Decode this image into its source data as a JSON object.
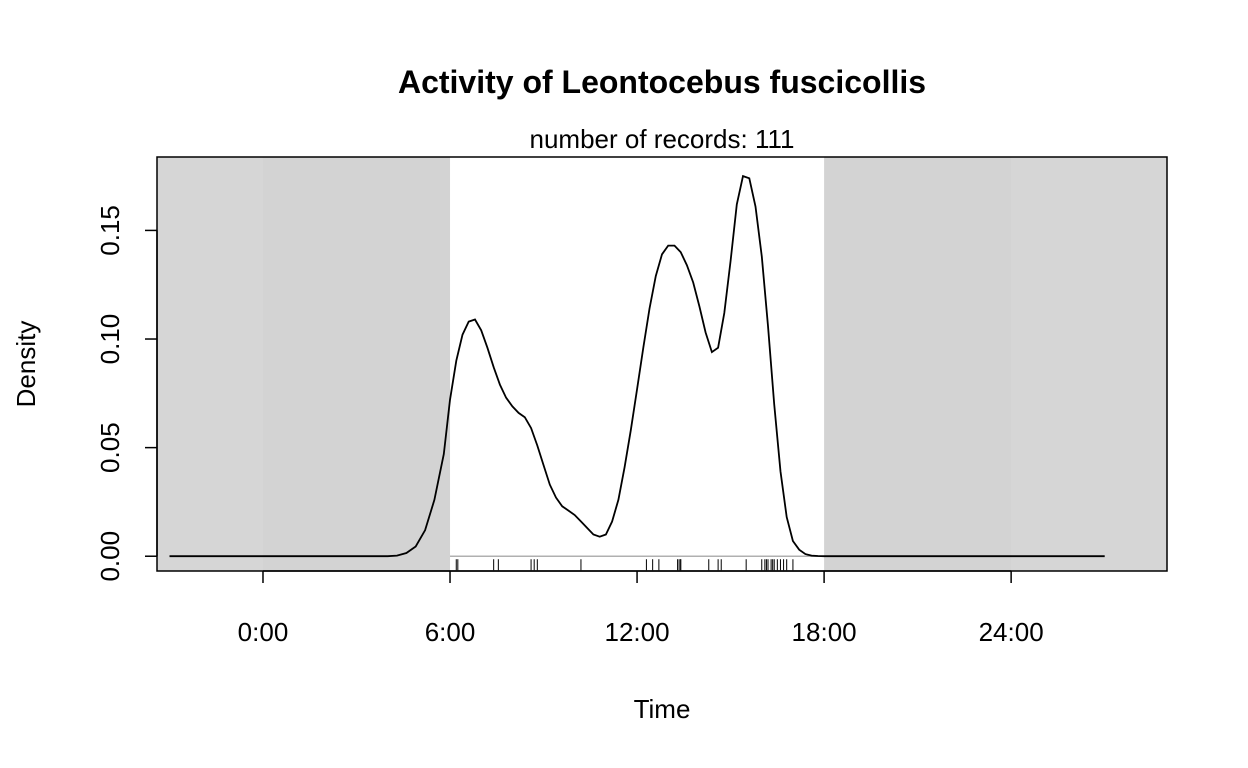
{
  "chart_data": {
    "type": "line",
    "title": "Activity of Leontocebus fuscicollis",
    "subtitle": "number of records: 111",
    "xlabel": "Time",
    "ylabel": "Density",
    "xlim": [
      -3.4,
      29.0
    ],
    "ylim": [
      -0.0068,
      0.1838
    ],
    "x_ticks": [
      0,
      6,
      12,
      18,
      24
    ],
    "x_tick_labels": [
      "0:00",
      "6:00",
      "12:00",
      "18:00",
      "24:00"
    ],
    "y_ticks": [
      0,
      0.05,
      0.1,
      0.15
    ],
    "y_tick_labels": [
      "0.00",
      "0.05",
      "0.10",
      "0.15"
    ],
    "grid": false,
    "background": {
      "night_color": "#d3d3d3",
      "repeat_color": "#d6d6d6",
      "day_color": "#ffffff",
      "daylight_range": [
        6.0,
        18.0
      ],
      "night_ranges": [
        [
          -3.4,
          6.0
        ],
        [
          18.0,
          29.0
        ]
      ],
      "repeat_shade_ranges": [
        [
          -3.4,
          0.0
        ],
        [
          24.0,
          29.0
        ]
      ]
    },
    "series": [
      {
        "color": "#000000",
        "x": [
          -3.0,
          4.0,
          4.3,
          4.6,
          4.9,
          5.2,
          5.5,
          5.8,
          6.0,
          6.2,
          6.4,
          6.6,
          6.8,
          7.0,
          7.2,
          7.4,
          7.6,
          7.8,
          8.0,
          8.2,
          8.4,
          8.6,
          8.8,
          9.0,
          9.2,
          9.4,
          9.6,
          9.8,
          10.0,
          10.2,
          10.4,
          10.6,
          10.8,
          11.0,
          11.2,
          11.4,
          11.6,
          11.8,
          12.0,
          12.2,
          12.4,
          12.6,
          12.8,
          13.0,
          13.2,
          13.4,
          13.6,
          13.8,
          14.0,
          14.2,
          14.4,
          14.6,
          14.8,
          15.0,
          15.2,
          15.4,
          15.6,
          15.8,
          16.0,
          16.2,
          16.4,
          16.6,
          16.8,
          17.0,
          17.2,
          17.4,
          17.6,
          17.8,
          18.0,
          18.2,
          18.4,
          18.6,
          19.0,
          20.0,
          24.0,
          27.0
        ],
        "y": [
          0.0,
          0.0,
          0.0003,
          0.0015,
          0.0045,
          0.012,
          0.026,
          0.047,
          0.072,
          0.09,
          0.102,
          0.108,
          0.109,
          0.104,
          0.096,
          0.087,
          0.079,
          0.073,
          0.069,
          0.066,
          0.064,
          0.059,
          0.051,
          0.042,
          0.033,
          0.027,
          0.023,
          0.021,
          0.019,
          0.016,
          0.013,
          0.01,
          0.009,
          0.01,
          0.016,
          0.026,
          0.041,
          0.058,
          0.077,
          0.096,
          0.114,
          0.129,
          0.139,
          0.143,
          0.143,
          0.14,
          0.134,
          0.126,
          0.115,
          0.103,
          0.094,
          0.096,
          0.112,
          0.136,
          0.162,
          0.175,
          0.174,
          0.161,
          0.138,
          0.106,
          0.07,
          0.039,
          0.018,
          0.007,
          0.003,
          0.001,
          0.0003,
          0.0001,
          0.0,
          0.0,
          0.0,
          0.0,
          0.0,
          0.0,
          0.0,
          0.0
        ]
      }
    ],
    "rug": [
      6.2,
      6.25,
      7.4,
      7.55,
      8.6,
      8.7,
      8.8,
      10.2,
      12.3,
      12.5,
      12.7,
      13.3,
      13.35,
      13.4,
      13.4,
      14.3,
      14.6,
      14.7,
      15.5,
      16.0,
      16.1,
      16.15,
      16.2,
      16.3,
      16.35,
      16.4,
      16.5,
      16.6,
      16.7,
      16.8,
      17.0
    ]
  }
}
